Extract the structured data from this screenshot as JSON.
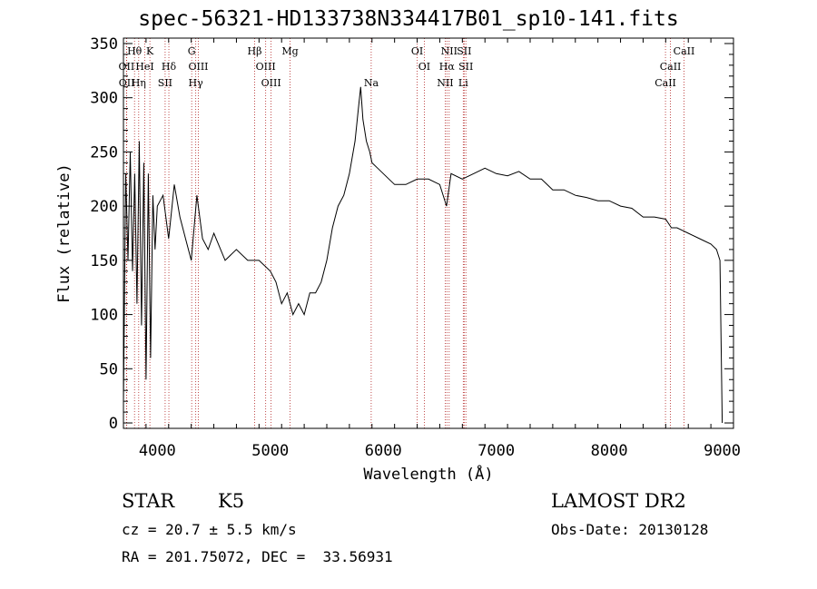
{
  "chart_data": {
    "type": "line",
    "title": "spec-56321-HD133738N334417B01_sp10-141.fits",
    "xlabel": "Wavelength (Å)",
    "ylabel": "Flux (relative)",
    "xlim": [
      3700,
      9100
    ],
    "ylim": [
      -5,
      355
    ],
    "xticks": [
      4000,
      5000,
      6000,
      7000,
      8000,
      9000
    ],
    "yticks": [
      0,
      50,
      100,
      150,
      200,
      250,
      300,
      350
    ],
    "grid": false,
    "line_color": "#000000",
    "marker_color": "#b22222",
    "series": [
      {
        "x": [
          3700,
          3720,
          3740,
          3760,
          3780,
          3800,
          3820,
          3840,
          3860,
          3880,
          3900,
          3920,
          3940,
          3960,
          3980,
          4000,
          4050,
          4100,
          4150,
          4200,
          4250,
          4300,
          4350,
          4400,
          4450,
          4500,
          4600,
          4700,
          4800,
          4900,
          5000,
          5050,
          5100,
          5150,
          5200,
          5250,
          5300,
          5350,
          5400,
          5450,
          5500,
          5550,
          5600,
          5650,
          5700,
          5750,
          5780,
          5800,
          5820,
          5850,
          5880,
          5900,
          5950,
          6000,
          6050,
          6100,
          6200,
          6300,
          6400,
          6500,
          6560,
          6600,
          6700,
          6800,
          6900,
          7000,
          7100,
          7200,
          7300,
          7400,
          7500,
          7600,
          7700,
          7800,
          7900,
          8000,
          8100,
          8200,
          8300,
          8400,
          8500,
          8550,
          8600,
          8700,
          8800,
          8900,
          8950,
          8980,
          9000
        ],
        "y": [
          20,
          230,
          150,
          250,
          140,
          230,
          110,
          260,
          90,
          240,
          40,
          230,
          60,
          210,
          160,
          200,
          210,
          170,
          220,
          190,
          170,
          150,
          210,
          170,
          160,
          175,
          150,
          160,
          150,
          150,
          140,
          130,
          110,
          120,
          100,
          110,
          100,
          120,
          120,
          130,
          150,
          180,
          200,
          210,
          230,
          260,
          290,
          310,
          280,
          260,
          250,
          240,
          235,
          230,
          225,
          220,
          220,
          225,
          225,
          220,
          200,
          230,
          225,
          230,
          235,
          230,
          228,
          232,
          225,
          225,
          215,
          215,
          210,
          208,
          205,
          205,
          200,
          198,
          190,
          190,
          188,
          180,
          180,
          175,
          170,
          165,
          160,
          150,
          0
        ]
      }
    ],
    "lines": [
      {
        "label": "Hθ",
        "x": 3798,
        "row": 0
      },
      {
        "label": "K",
        "x": 3934,
        "row": 0
      },
      {
        "label": "G",
        "x": 4304,
        "row": 0
      },
      {
        "label": "Hβ",
        "x": 4861,
        "row": 0
      },
      {
        "label": "Mg",
        "x": 5175,
        "row": 0
      },
      {
        "label": "OI",
        "x": 6300,
        "row": 0
      },
      {
        "label": "NII",
        "x": 6583,
        "row": 0
      },
      {
        "label": "SII",
        "x": 6716,
        "row": 0
      },
      {
        "label": "CaII",
        "x": 8662,
        "row": 0
      },
      {
        "label": "OII",
        "x": 3727,
        "row": 1
      },
      {
        "label": "HeI",
        "x": 3889,
        "row": 1
      },
      {
        "label": "Hδ",
        "x": 4102,
        "row": 1
      },
      {
        "label": "OIII",
        "x": 4363,
        "row": 1
      },
      {
        "label": "OIII",
        "x": 4959,
        "row": 1
      },
      {
        "label": "OI",
        "x": 6363,
        "row": 1
      },
      {
        "label": "Hα",
        "x": 6563,
        "row": 1
      },
      {
        "label": "SII",
        "x": 6731,
        "row": 1
      },
      {
        "label": "CaII",
        "x": 8542,
        "row": 1
      },
      {
        "label": "OII",
        "x": 3729,
        "row": 2
      },
      {
        "label": "Hη",
        "x": 3835,
        "row": 2
      },
      {
        "label": "SII",
        "x": 4069,
        "row": 2
      },
      {
        "label": "Hγ",
        "x": 4340,
        "row": 2
      },
      {
        "label": "OIII",
        "x": 5007,
        "row": 2
      },
      {
        "label": "Na",
        "x": 5893,
        "row": 2
      },
      {
        "label": "NII",
        "x": 6548,
        "row": 2
      },
      {
        "label": "Li",
        "x": 6708,
        "row": 2
      },
      {
        "label": "CaII",
        "x": 8498,
        "row": 2
      }
    ]
  },
  "info": {
    "class": "STAR",
    "subclass": "K5",
    "survey": "LAMOST DR2",
    "cz": "cz = 20.7 ± 5.5 km/s",
    "obs_date": "Obs-Date: 20130128",
    "coords": "RA = 201.75072, DEC =  33.56931"
  }
}
